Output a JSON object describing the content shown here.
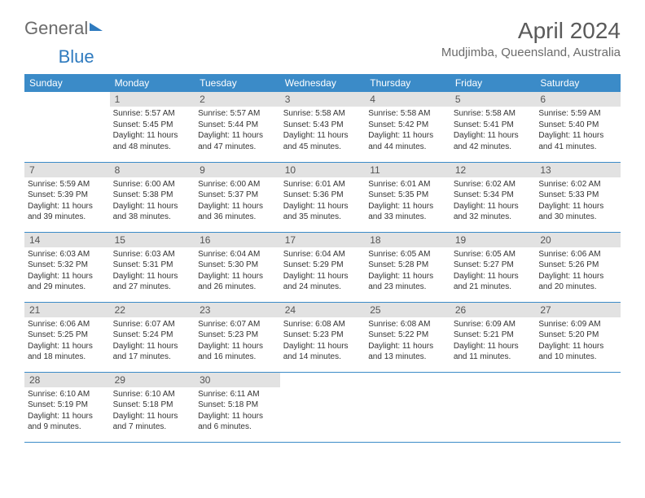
{
  "logo": {
    "text_gray": "General",
    "text_blue": "Blue"
  },
  "title": "April 2024",
  "location": "Mudjimba, Queensland, Australia",
  "colors": {
    "header_bg": "#3b8bc8",
    "header_text": "#ffffff",
    "daynum_bg": "#e2e2e2",
    "row_border": "#3b8bc8",
    "logo_gray": "#6b6b6b",
    "logo_blue": "#2f7bbf",
    "title_color": "#5a5a5a"
  },
  "typography": {
    "title_fontsize": 28,
    "location_fontsize": 15,
    "dayheader_fontsize": 12,
    "daynum_fontsize": 12,
    "body_fontsize": 10
  },
  "days_of_week": [
    "Sunday",
    "Monday",
    "Tuesday",
    "Wednesday",
    "Thursday",
    "Friday",
    "Saturday"
  ],
  "weeks": [
    [
      null,
      {
        "n": "1",
        "sunrise": "5:57 AM",
        "sunset": "5:45 PM",
        "daylight": "11 hours and 48 minutes."
      },
      {
        "n": "2",
        "sunrise": "5:57 AM",
        "sunset": "5:44 PM",
        "daylight": "11 hours and 47 minutes."
      },
      {
        "n": "3",
        "sunrise": "5:58 AM",
        "sunset": "5:43 PM",
        "daylight": "11 hours and 45 minutes."
      },
      {
        "n": "4",
        "sunrise": "5:58 AM",
        "sunset": "5:42 PM",
        "daylight": "11 hours and 44 minutes."
      },
      {
        "n": "5",
        "sunrise": "5:58 AM",
        "sunset": "5:41 PM",
        "daylight": "11 hours and 42 minutes."
      },
      {
        "n": "6",
        "sunrise": "5:59 AM",
        "sunset": "5:40 PM",
        "daylight": "11 hours and 41 minutes."
      }
    ],
    [
      {
        "n": "7",
        "sunrise": "5:59 AM",
        "sunset": "5:39 PM",
        "daylight": "11 hours and 39 minutes."
      },
      {
        "n": "8",
        "sunrise": "6:00 AM",
        "sunset": "5:38 PM",
        "daylight": "11 hours and 38 minutes."
      },
      {
        "n": "9",
        "sunrise": "6:00 AM",
        "sunset": "5:37 PM",
        "daylight": "11 hours and 36 minutes."
      },
      {
        "n": "10",
        "sunrise": "6:01 AM",
        "sunset": "5:36 PM",
        "daylight": "11 hours and 35 minutes."
      },
      {
        "n": "11",
        "sunrise": "6:01 AM",
        "sunset": "5:35 PM",
        "daylight": "11 hours and 33 minutes."
      },
      {
        "n": "12",
        "sunrise": "6:02 AM",
        "sunset": "5:34 PM",
        "daylight": "11 hours and 32 minutes."
      },
      {
        "n": "13",
        "sunrise": "6:02 AM",
        "sunset": "5:33 PM",
        "daylight": "11 hours and 30 minutes."
      }
    ],
    [
      {
        "n": "14",
        "sunrise": "6:03 AM",
        "sunset": "5:32 PM",
        "daylight": "11 hours and 29 minutes."
      },
      {
        "n": "15",
        "sunrise": "6:03 AM",
        "sunset": "5:31 PM",
        "daylight": "11 hours and 27 minutes."
      },
      {
        "n": "16",
        "sunrise": "6:04 AM",
        "sunset": "5:30 PM",
        "daylight": "11 hours and 26 minutes."
      },
      {
        "n": "17",
        "sunrise": "6:04 AM",
        "sunset": "5:29 PM",
        "daylight": "11 hours and 24 minutes."
      },
      {
        "n": "18",
        "sunrise": "6:05 AM",
        "sunset": "5:28 PM",
        "daylight": "11 hours and 23 minutes."
      },
      {
        "n": "19",
        "sunrise": "6:05 AM",
        "sunset": "5:27 PM",
        "daylight": "11 hours and 21 minutes."
      },
      {
        "n": "20",
        "sunrise": "6:06 AM",
        "sunset": "5:26 PM",
        "daylight": "11 hours and 20 minutes."
      }
    ],
    [
      {
        "n": "21",
        "sunrise": "6:06 AM",
        "sunset": "5:25 PM",
        "daylight": "11 hours and 18 minutes."
      },
      {
        "n": "22",
        "sunrise": "6:07 AM",
        "sunset": "5:24 PM",
        "daylight": "11 hours and 17 minutes."
      },
      {
        "n": "23",
        "sunrise": "6:07 AM",
        "sunset": "5:23 PM",
        "daylight": "11 hours and 16 minutes."
      },
      {
        "n": "24",
        "sunrise": "6:08 AM",
        "sunset": "5:23 PM",
        "daylight": "11 hours and 14 minutes."
      },
      {
        "n": "25",
        "sunrise": "6:08 AM",
        "sunset": "5:22 PM",
        "daylight": "11 hours and 13 minutes."
      },
      {
        "n": "26",
        "sunrise": "6:09 AM",
        "sunset": "5:21 PM",
        "daylight": "11 hours and 11 minutes."
      },
      {
        "n": "27",
        "sunrise": "6:09 AM",
        "sunset": "5:20 PM",
        "daylight": "11 hours and 10 minutes."
      }
    ],
    [
      {
        "n": "28",
        "sunrise": "6:10 AM",
        "sunset": "5:19 PM",
        "daylight": "11 hours and 9 minutes."
      },
      {
        "n": "29",
        "sunrise": "6:10 AM",
        "sunset": "5:18 PM",
        "daylight": "11 hours and 7 minutes."
      },
      {
        "n": "30",
        "sunrise": "6:11 AM",
        "sunset": "5:18 PM",
        "daylight": "11 hours and 6 minutes."
      },
      null,
      null,
      null,
      null
    ]
  ],
  "labels": {
    "sunrise": "Sunrise:",
    "sunset": "Sunset:",
    "daylight": "Daylight:"
  }
}
